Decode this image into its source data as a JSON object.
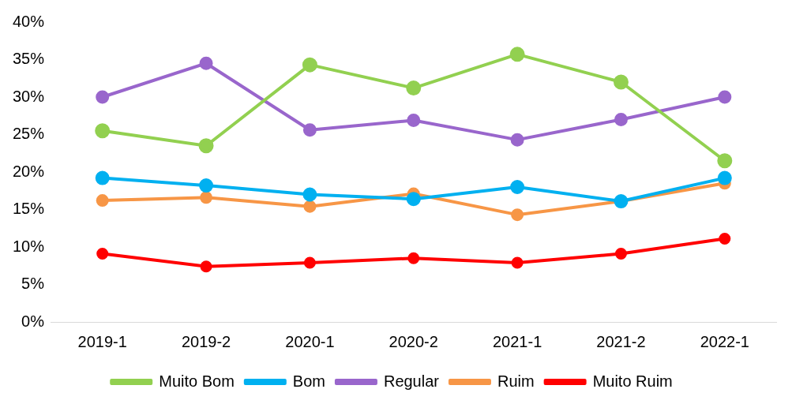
{
  "chart_data": {
    "type": "line",
    "categories": [
      "2019-1",
      "2019-2",
      "2020-1",
      "2020-2",
      "2021-1",
      "2021-2",
      "2022-1"
    ],
    "series": [
      {
        "name": "Muito Bom",
        "color": "#92d050",
        "values": [
          25.5,
          23.5,
          34.3,
          31.2,
          35.7,
          32.0,
          21.5
        ]
      },
      {
        "name": "Bom",
        "color": "#00b0f0",
        "values": [
          19.2,
          18.2,
          17.0,
          16.4,
          18.0,
          16.1,
          19.2
        ]
      },
      {
        "name": "Regular",
        "color": "#9966cc",
        "values": [
          30.0,
          34.5,
          25.6,
          26.9,
          24.3,
          27.0,
          30.0
        ]
      },
      {
        "name": "Ruim",
        "color": "#f79646",
        "values": [
          16.2,
          16.6,
          15.4,
          17.1,
          14.3,
          16.1,
          18.5
        ]
      },
      {
        "name": "Muito Ruim",
        "color": "#ff0000",
        "values": [
          9.1,
          7.4,
          7.9,
          8.5,
          7.9,
          9.1,
          11.1
        ]
      }
    ],
    "ylim": [
      0,
      40
    ],
    "yticks": [
      {
        "value": 0,
        "label": "0%"
      },
      {
        "value": 5,
        "label": "5%"
      },
      {
        "value": 10,
        "label": "10%"
      },
      {
        "value": 15,
        "label": "15%"
      },
      {
        "value": 20,
        "label": "20%"
      },
      {
        "value": 25,
        "label": "25%"
      },
      {
        "value": 30,
        "label": "30%"
      },
      {
        "value": 35,
        "label": "35%"
      },
      {
        "value": 40,
        "label": "40%"
      }
    ],
    "grid": false,
    "legend": "bottom",
    "marker": "circle",
    "line_style": "solid"
  }
}
